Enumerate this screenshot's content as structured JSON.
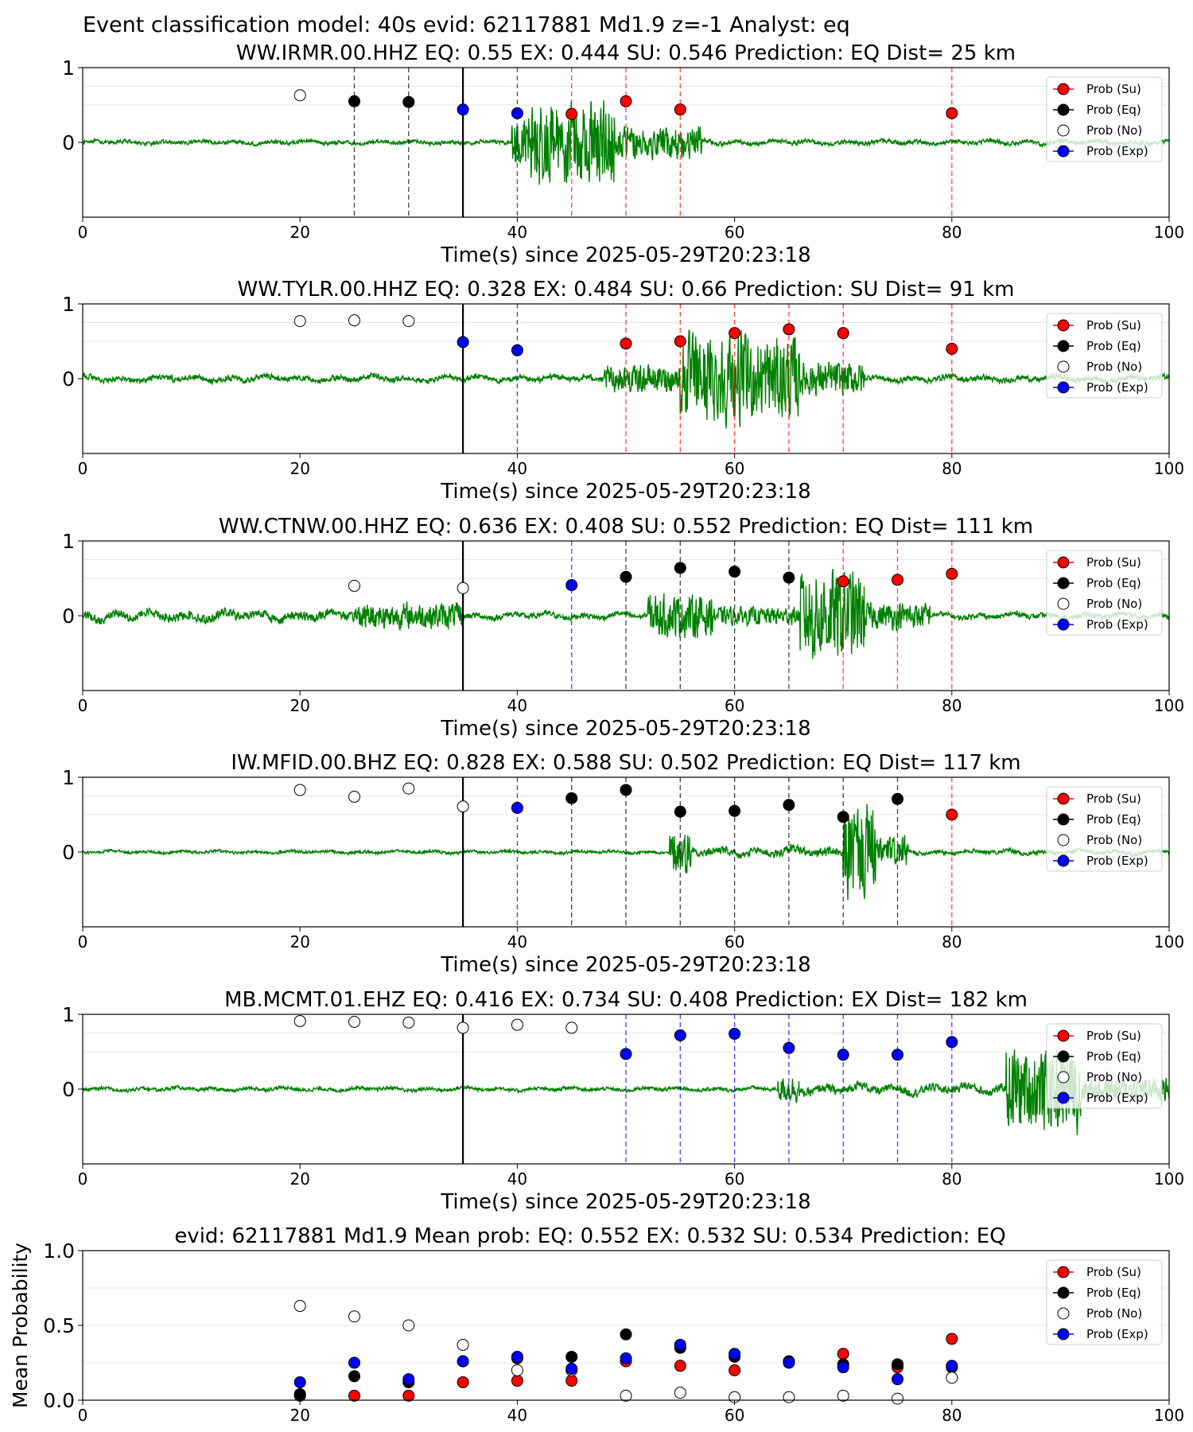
{
  "figure": {
    "suptitle": "Event classification model: 40s evid: 62117881 Md1.9 z=-1 Analyst: eq"
  },
  "legend_labels": [
    "Prob (Su)",
    "Prob (Eq)",
    "Prob (No)",
    "Prob (Exp)"
  ],
  "colors": {
    "su": "#ff0000",
    "eq": "#000000",
    "no": "#ffffff",
    "exp": "#0000ff",
    "waveform": "#008000",
    "origin_line": "#000000",
    "grid": "#e6e6e6"
  },
  "chart_data": [
    {
      "type": "scatter",
      "panel": "station",
      "title": "WW.IRMR.00.HHZ   EQ: 0.55  EX: 0.444  SU: 0.546   Prediction: EQ    Dist= 25 km",
      "xlabel": "Time(s) since 2025-05-29T20:23:18",
      "ylabel": "",
      "xlim": [
        0,
        100
      ],
      "ylim": [
        -1,
        1
      ],
      "xticks": [
        "0",
        "20",
        "40",
        "60",
        "80",
        "100"
      ],
      "yticks": [
        "1",
        "0"
      ],
      "origin_time": 35,
      "waveform": {
        "segments": [
          {
            "from": 0,
            "to": 39.5,
            "amp": 0.05
          },
          {
            "from": 39.5,
            "to": 41,
            "amp": 0.45
          },
          {
            "from": 41,
            "to": 49,
            "amp": 0.72
          },
          {
            "from": 49,
            "to": 57,
            "amp": 0.28
          },
          {
            "from": 57,
            "to": 100,
            "amp": 0.06
          }
        ]
      },
      "points": [
        {
          "t": 20,
          "class": "no",
          "p": 0.63,
          "line": ""
        },
        {
          "t": 25,
          "class": "eq",
          "p": 0.55,
          "line": "eq"
        },
        {
          "t": 30,
          "class": "eq",
          "p": 0.54,
          "line": "eq"
        },
        {
          "t": 35,
          "class": "exp",
          "p": 0.44,
          "line": ""
        },
        {
          "t": 40,
          "class": "exp",
          "p": 0.39,
          "line": "exp"
        },
        {
          "t": 45,
          "class": "su",
          "p": 0.38,
          "line": "su"
        },
        {
          "t": 50,
          "class": "su",
          "p": 0.55,
          "line": "su"
        },
        {
          "t": 55,
          "class": "su",
          "p": 0.44,
          "line": "su"
        },
        {
          "t": 80,
          "class": "su",
          "p": 0.39,
          "line": "su"
        }
      ]
    },
    {
      "type": "scatter",
      "panel": "station",
      "title": "WW.TYLR.00.HHZ   EQ: 0.328  EX: 0.484  SU: 0.66   Prediction: SU    Dist= 91 km",
      "xlabel": "Time(s) since 2025-05-29T20:23:18",
      "ylabel": "",
      "xlim": [
        0,
        100
      ],
      "ylim": [
        -1,
        1
      ],
      "xticks": [
        "0",
        "20",
        "40",
        "60",
        "80",
        "100"
      ],
      "yticks": [
        "1",
        "0"
      ],
      "origin_time": 35,
      "waveform": {
        "segments": [
          {
            "from": 0,
            "to": 48,
            "amp": 0.08
          },
          {
            "from": 48,
            "to": 55,
            "amp": 0.22
          },
          {
            "from": 55,
            "to": 66,
            "amp": 0.72
          },
          {
            "from": 66,
            "to": 72,
            "amp": 0.28
          },
          {
            "from": 72,
            "to": 100,
            "amp": 0.08
          }
        ]
      },
      "points": [
        {
          "t": 20,
          "class": "no",
          "p": 0.77,
          "line": ""
        },
        {
          "t": 25,
          "class": "no",
          "p": 0.78,
          "line": ""
        },
        {
          "t": 30,
          "class": "no",
          "p": 0.77,
          "line": ""
        },
        {
          "t": 35,
          "class": "exp",
          "p": 0.49,
          "line": ""
        },
        {
          "t": 40,
          "class": "exp",
          "p": 0.38,
          "line": "exp"
        },
        {
          "t": 50,
          "class": "su",
          "p": 0.47,
          "line": "su"
        },
        {
          "t": 55,
          "class": "su",
          "p": 0.5,
          "line": "su"
        },
        {
          "t": 60,
          "class": "su",
          "p": 0.61,
          "line": "su"
        },
        {
          "t": 65,
          "class": "su",
          "p": 0.66,
          "line": "su"
        },
        {
          "t": 70,
          "class": "su",
          "p": 0.61,
          "line": "su"
        },
        {
          "t": 80,
          "class": "su",
          "p": 0.4,
          "line": "su"
        }
      ]
    },
    {
      "type": "scatter",
      "panel": "station",
      "title": "WW.CTNW.00.HHZ   EQ: 0.636  EX: 0.408  SU: 0.552   Prediction: EQ    Dist= 111 km",
      "xlabel": "Time(s) since 2025-05-29T20:23:18",
      "ylabel": "",
      "xlim": [
        0,
        100
      ],
      "ylim": [
        -1,
        1
      ],
      "xticks": [
        "0",
        "20",
        "40",
        "60",
        "80",
        "100"
      ],
      "yticks": [
        "1",
        "0"
      ],
      "origin_time": 35,
      "waveform": {
        "segments": [
          {
            "from": 0,
            "to": 25,
            "amp": 0.13
          },
          {
            "from": 25,
            "to": 35,
            "amp": 0.22
          },
          {
            "from": 35,
            "to": 52,
            "amp": 0.08
          },
          {
            "from": 52,
            "to": 58,
            "amp": 0.35
          },
          {
            "from": 58,
            "to": 66,
            "amp": 0.15
          },
          {
            "from": 66,
            "to": 72,
            "amp": 0.78
          },
          {
            "from": 72,
            "to": 78,
            "amp": 0.22
          },
          {
            "from": 78,
            "to": 100,
            "amp": 0.07
          }
        ]
      },
      "points": [
        {
          "t": 25,
          "class": "no",
          "p": 0.4,
          "line": ""
        },
        {
          "t": 35,
          "class": "no",
          "p": 0.37,
          "line": ""
        },
        {
          "t": 45,
          "class": "exp",
          "p": 0.41,
          "line": "exp"
        },
        {
          "t": 50,
          "class": "eq",
          "p": 0.52,
          "line": "eq"
        },
        {
          "t": 55,
          "class": "eq",
          "p": 0.64,
          "line": "eq"
        },
        {
          "t": 60,
          "class": "eq",
          "p": 0.59,
          "line": "eq"
        },
        {
          "t": 65,
          "class": "eq",
          "p": 0.51,
          "line": "eq"
        },
        {
          "t": 70,
          "class": "su",
          "p": 0.46,
          "line": "su"
        },
        {
          "t": 75,
          "class": "su",
          "p": 0.48,
          "line": "su"
        },
        {
          "t": 80,
          "class": "su",
          "p": 0.56,
          "line": "su"
        }
      ]
    },
    {
      "type": "scatter",
      "panel": "station",
      "title": "IW.MFID.00.BHZ   EQ: 0.828  EX: 0.588  SU: 0.502   Prediction: EQ    Dist= 117 km",
      "xlabel": "Time(s) since 2025-05-29T20:23:18",
      "ylabel": "",
      "xlim": [
        0,
        100
      ],
      "ylim": [
        -1,
        1
      ],
      "xticks": [
        "0",
        "20",
        "40",
        "60",
        "80",
        "100"
      ],
      "yticks": [
        "1",
        "0"
      ],
      "origin_time": 35,
      "waveform": {
        "segments": [
          {
            "from": 0,
            "to": 54,
            "amp": 0.04
          },
          {
            "from": 54,
            "to": 56,
            "amp": 0.35
          },
          {
            "from": 56,
            "to": 70,
            "amp": 0.12
          },
          {
            "from": 70,
            "to": 73,
            "amp": 0.8
          },
          {
            "from": 73,
            "to": 76,
            "amp": 0.25
          },
          {
            "from": 76,
            "to": 100,
            "amp": 0.06
          }
        ]
      },
      "points": [
        {
          "t": 20,
          "class": "no",
          "p": 0.83,
          "line": ""
        },
        {
          "t": 25,
          "class": "no",
          "p": 0.74,
          "line": ""
        },
        {
          "t": 30,
          "class": "no",
          "p": 0.85,
          "line": ""
        },
        {
          "t": 35,
          "class": "no",
          "p": 0.61,
          "line": ""
        },
        {
          "t": 40,
          "class": "exp",
          "p": 0.59,
          "line": "exp"
        },
        {
          "t": 45,
          "class": "eq",
          "p": 0.72,
          "line": "eq"
        },
        {
          "t": 50,
          "class": "eq",
          "p": 0.83,
          "line": "eq"
        },
        {
          "t": 55,
          "class": "eq",
          "p": 0.54,
          "line": "eq"
        },
        {
          "t": 60,
          "class": "eq",
          "p": 0.55,
          "line": "eq"
        },
        {
          "t": 65,
          "class": "eq",
          "p": 0.63,
          "line": "eq"
        },
        {
          "t": 70,
          "class": "eq",
          "p": 0.47,
          "line": "eq"
        },
        {
          "t": 75,
          "class": "eq",
          "p": 0.71,
          "line": "eq"
        },
        {
          "t": 80,
          "class": "su",
          "p": 0.5,
          "line": "su"
        }
      ]
    },
    {
      "type": "scatter",
      "panel": "station",
      "title": "MB.MCMT.01.EHZ   EQ: 0.416  EX: 0.734  SU: 0.408   Prediction: EX    Dist= 182 km",
      "xlabel": "Time(s) since 2025-05-29T20:23:18",
      "ylabel": "",
      "xlim": [
        0,
        100
      ],
      "ylim": [
        -1,
        1
      ],
      "xticks": [
        "0",
        "20",
        "40",
        "60",
        "80",
        "100"
      ],
      "yticks": [
        "1",
        "0"
      ],
      "origin_time": 35,
      "waveform": {
        "segments": [
          {
            "from": 0,
            "to": 64,
            "amp": 0.05
          },
          {
            "from": 64,
            "to": 66,
            "amp": 0.22
          },
          {
            "from": 66,
            "to": 85,
            "amp": 0.12
          },
          {
            "from": 85,
            "to": 92,
            "amp": 0.7
          },
          {
            "from": 92,
            "to": 100,
            "amp": 0.2
          }
        ]
      },
      "points": [
        {
          "t": 20,
          "class": "no",
          "p": 0.91,
          "line": ""
        },
        {
          "t": 25,
          "class": "no",
          "p": 0.9,
          "line": ""
        },
        {
          "t": 30,
          "class": "no",
          "p": 0.89,
          "line": ""
        },
        {
          "t": 35,
          "class": "no",
          "p": 0.82,
          "line": ""
        },
        {
          "t": 40,
          "class": "no",
          "p": 0.86,
          "line": ""
        },
        {
          "t": 45,
          "class": "no",
          "p": 0.82,
          "line": ""
        },
        {
          "t": 50,
          "class": "exp",
          "p": 0.47,
          "line": "exp"
        },
        {
          "t": 55,
          "class": "exp",
          "p": 0.72,
          "line": "exp"
        },
        {
          "t": 60,
          "class": "exp",
          "p": 0.74,
          "line": "exp"
        },
        {
          "t": 65,
          "class": "exp",
          "p": 0.55,
          "line": "exp"
        },
        {
          "t": 70,
          "class": "exp",
          "p": 0.46,
          "line": "exp"
        },
        {
          "t": 75,
          "class": "exp",
          "p": 0.46,
          "line": "exp"
        },
        {
          "t": 80,
          "class": "exp",
          "p": 0.63,
          "line": "exp"
        }
      ]
    },
    {
      "type": "scatter",
      "panel": "mean",
      "title": "evid: 62117881  Md1.9   Mean prob:   EQ: 0.552  EX: 0.532  SU: 0.534   Prediction: EQ",
      "xlabel": "",
      "ylabel": "Mean Probability",
      "xlim": [
        0,
        100
      ],
      "ylim": [
        0,
        1
      ],
      "xticks": [
        "0",
        "20",
        "40",
        "60",
        "80",
        "100"
      ],
      "yticks": [
        "1.0",
        "0.5",
        "0.0"
      ],
      "x": [
        20,
        25,
        30,
        35,
        40,
        45,
        50,
        55,
        60,
        65,
        70,
        75,
        80
      ],
      "series": [
        {
          "name": "Prob (Su)",
          "class": "su",
          "values": [
            0.03,
            0.03,
            0.03,
            0.12,
            0.13,
            0.13,
            0.26,
            0.23,
            0.2,
            0.26,
            0.31,
            0.22,
            0.41
          ]
        },
        {
          "name": "Prob (Eq)",
          "class": "eq",
          "values": [
            0.04,
            0.16,
            0.12,
            0.26,
            0.28,
            0.29,
            0.44,
            0.35,
            0.29,
            0.26,
            0.24,
            0.24,
            0.22
          ]
        },
        {
          "name": "Prob (No)",
          "class": "no",
          "values": [
            0.63,
            0.56,
            0.5,
            0.37,
            0.2,
            0.2,
            0.03,
            0.05,
            0.02,
            0.02,
            0.03,
            0.01,
            0.15
          ]
        },
        {
          "name": "Prob (Exp)",
          "class": "exp",
          "values": [
            0.12,
            0.25,
            0.14,
            0.26,
            0.29,
            0.21,
            0.28,
            0.37,
            0.31,
            0.25,
            0.22,
            0.14,
            0.23
          ]
        }
      ]
    }
  ]
}
